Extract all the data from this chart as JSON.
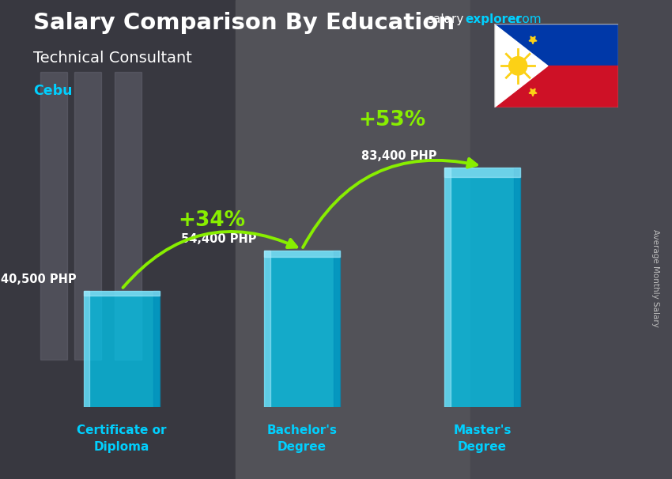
{
  "title": "Salary Comparison By Education",
  "subtitle": "Technical Consultant",
  "location": "Cebu",
  "ylabel": "Average Monthly Salary",
  "categories": [
    "Certificate or\nDiploma",
    "Bachelor's\nDegree",
    "Master's\nDegree"
  ],
  "values": [
    40500,
    54400,
    83400
  ],
  "value_labels": [
    "40,500 PHP",
    "54,400 PHP",
    "83,400 PHP"
  ],
  "pct_labels": [
    "+34%",
    "+53%"
  ],
  "bar_color_main": "#00c8f0",
  "bar_color_dark": "#0090bb",
  "bar_color_light": "#aaeeff",
  "bar_width": 0.42,
  "positions": [
    1,
    2,
    3
  ],
  "arrow_color": "#88ee00",
  "bg_color": "#4a4a52",
  "title_color": "#ffffff",
  "subtitle_color": "#ffffff",
  "location_color": "#00d0ff",
  "value_label_color": "#ffffff",
  "pct_color": "#88ee00",
  "xtick_color": "#00d0ff",
  "ylabel_color": "#bbbbbb",
  "site_color": "#00d0ff",
  "ylim_max": 100000,
  "flag_blue": "#0038a8",
  "flag_red": "#ce1126",
  "flag_white": "#ffffff",
  "flag_yellow": "#fcd116"
}
